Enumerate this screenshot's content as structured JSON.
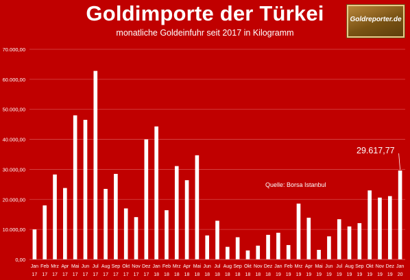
{
  "header": {
    "title": "Goldimporte der Türkei",
    "subtitle": "monatliche Goldeinfuhr seit 2017 in Kilogramm",
    "logo_text": "Goldreporter.de"
  },
  "source_note": "Quelle: Borsa Istanbul",
  "callout_label": "29.617,77",
  "colors": {
    "background": "#c00000",
    "bars": "#ffffff",
    "grid": "#d84a4a",
    "logo": "#8a5c18"
  },
  "chart_data": {
    "type": "bar",
    "title": "Goldimporte der Türkei",
    "subtitle": "monatliche Goldeinfuhr seit 2017 in Kilogramm",
    "xlabel": "",
    "ylabel": "",
    "ylim": [
      0,
      70000
    ],
    "yticks": [
      0,
      10000,
      20000,
      30000,
      40000,
      50000,
      60000,
      70000
    ],
    "ytick_labels": [
      "0,00",
      "10.000,00",
      "20.000,00",
      "30.000,00",
      "40.000,00",
      "50.000,00",
      "60.000,00",
      "70.000,00"
    ],
    "grid": true,
    "legend": "none",
    "categories": [
      [
        "Jan",
        "17"
      ],
      [
        "Feb",
        "17"
      ],
      [
        "Mrz",
        "17"
      ],
      [
        "Apr",
        "17"
      ],
      [
        "Mai",
        "17"
      ],
      [
        "Jun",
        "17"
      ],
      [
        "Jul",
        "17"
      ],
      [
        "Aug",
        "17"
      ],
      [
        "Sep",
        "17"
      ],
      [
        "Okt",
        "17"
      ],
      [
        "Nov",
        "17"
      ],
      [
        "Dez",
        "17"
      ],
      [
        "Jan",
        "18"
      ],
      [
        "Feb",
        "18"
      ],
      [
        "Mrz",
        "18"
      ],
      [
        "Apr",
        "18"
      ],
      [
        "Mai",
        "18"
      ],
      [
        "Jun",
        "18"
      ],
      [
        "Jul",
        "18"
      ],
      [
        "Aug",
        "18"
      ],
      [
        "Sep",
        "18"
      ],
      [
        "Okt",
        "18"
      ],
      [
        "Nov",
        "18"
      ],
      [
        "Dez",
        "18"
      ],
      [
        "Jan",
        "19"
      ],
      [
        "Feb",
        "19"
      ],
      [
        "Mrz",
        "19"
      ],
      [
        "Apr",
        "19"
      ],
      [
        "Mai",
        "19"
      ],
      [
        "Jun",
        "19"
      ],
      [
        "Jul",
        "19"
      ],
      [
        "Aug",
        "19"
      ],
      [
        "Sep",
        "19"
      ],
      [
        "Okt",
        "19"
      ],
      [
        "Nov",
        "19"
      ],
      [
        "Dez",
        "19"
      ],
      [
        "Jan",
        "20"
      ]
    ],
    "values": [
      10000,
      18000,
      28300,
      23800,
      48000,
      46500,
      62800,
      23500,
      28500,
      17000,
      14100,
      40000,
      44300,
      16400,
      31100,
      26400,
      34700,
      8000,
      12900,
      4200,
      7400,
      3000,
      4600,
      8200,
      8900,
      4800,
      18600,
      13900,
      3200,
      7700,
      13400,
      11000,
      12100,
      23000,
      20600,
      21100,
      29617.77
    ],
    "annotations": [
      {
        "category_index": 36,
        "text": "29.617,77"
      }
    ]
  }
}
